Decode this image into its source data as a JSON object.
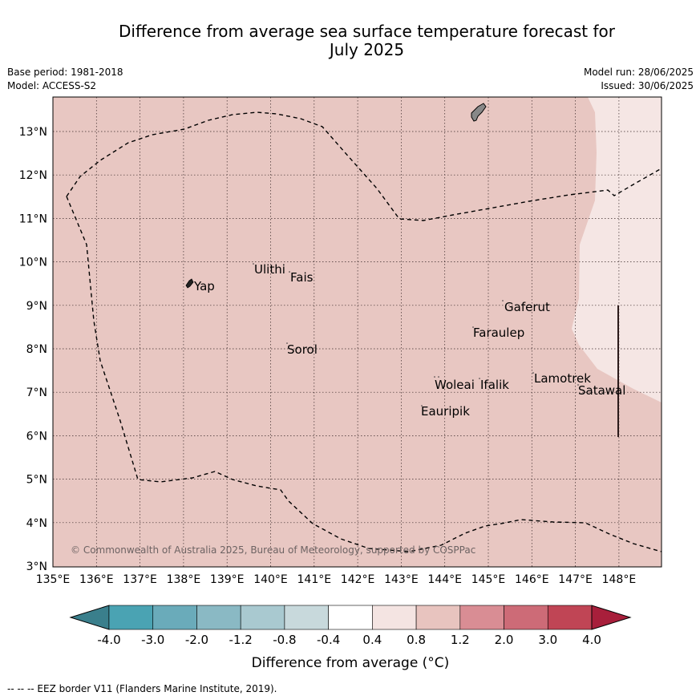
{
  "title_line1": "Difference from average sea surface temperature forecast for",
  "title_line2": "July 2025",
  "base_period": "Base period: 1981-2018",
  "model": "Model: ACCESS-S2",
  "model_run": "Model run: 28/06/2025",
  "issued": "Issued: 30/06/2025",
  "copyright": "© Commonwealth of Australia 2025, Bureau of Meteorology, supported by COSPPac",
  "footnote": "-- -- -- EEZ border V11 (Flanders Marine Institute, 2019).",
  "colorbar_label": "Difference from average (°C)",
  "lon_ticks": [
    "135°E",
    "136°E",
    "137°E",
    "138°E",
    "139°E",
    "140°E",
    "141°E",
    "142°E",
    "143°E",
    "144°E",
    "145°E",
    "146°E",
    "147°E",
    "148°E"
  ],
  "lat_ticks": [
    "3°N",
    "4°N",
    "5°N",
    "6°N",
    "7°N",
    "8°N",
    "9°N",
    "10°N",
    "11°N",
    "12°N",
    "13°N"
  ],
  "colorbar_ticks": [
    "-4.0",
    "-3.0",
    "-2.0",
    "-1.2",
    "-0.8",
    "-0.4",
    "0.4",
    "0.8",
    "1.2",
    "2.0",
    "3.0",
    "4.0"
  ],
  "colorbar_colors": [
    "#3a7f8c",
    "#4aa3b3",
    "#6aabba",
    "#8ab9c4",
    "#a9c9d0",
    "#c8d9dc",
    "#ffffff",
    "#f4e4e2",
    "#e8c4bf",
    "#d98d94",
    "#cd6b77",
    "#c04555",
    "#a81f3b"
  ],
  "places": [
    "Yap",
    "Ulithi",
    "Fais",
    "Sorol",
    "Gaferut",
    "Faraulep",
    "Woleai",
    "Ifalik",
    "Eauripik",
    "Lamotrek",
    "Satawal"
  ],
  "map_colors": {
    "main_anomaly": "#e8c7c2",
    "east_anomaly": "#f5e6e4"
  }
}
